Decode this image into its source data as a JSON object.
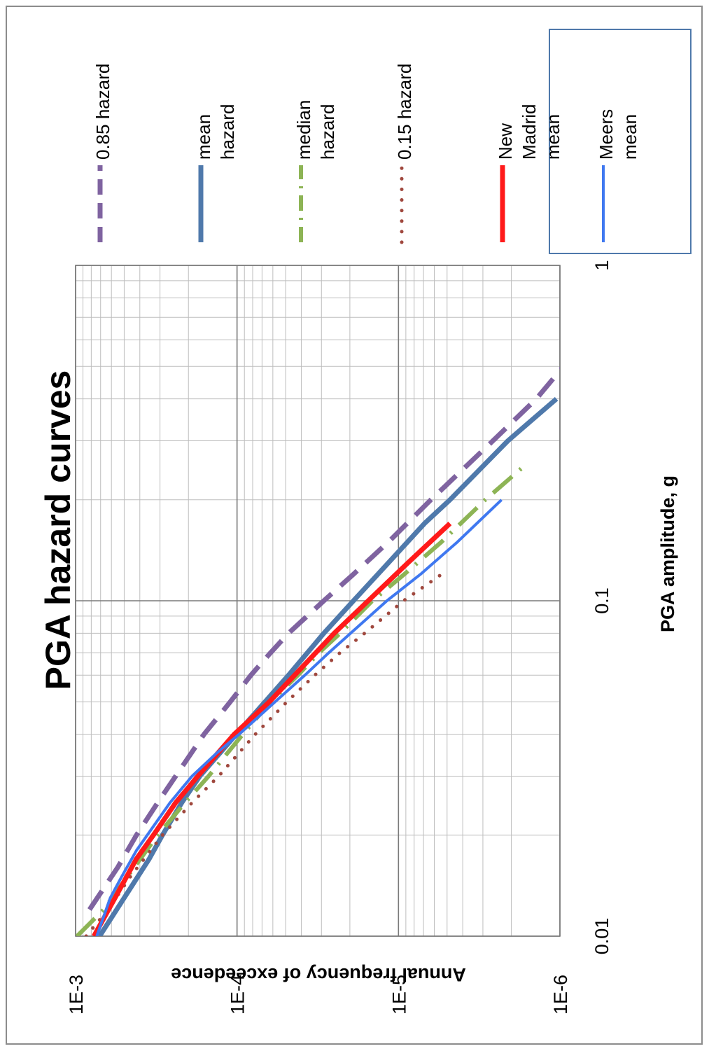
{
  "chart_data": {
    "type": "line",
    "orientation": "rotated-90-clockwise",
    "title": "PGA hazard curves",
    "xlabel": "PGA amplitude, g",
    "ylabel": "Annual frequency of exceedence",
    "xscale": "log",
    "yscale": "log",
    "xlim": [
      0.01,
      1
    ],
    "ylim": [
      1e-06,
      0.001
    ],
    "x_tick_labels": [
      "0.01",
      "0.1",
      "1"
    ],
    "y_tick_labels": [
      "1E-3",
      "1E-4",
      "1E-5",
      "1E-6"
    ],
    "grid": true,
    "legend_position": "right",
    "series": [
      {
        "name": "0.85 hazard",
        "color": "#7f63a0",
        "style": "dashed",
        "width": 7,
        "x": [
          0.012,
          0.016,
          0.02,
          0.025,
          0.03,
          0.04,
          0.05,
          0.06,
          0.07,
          0.08,
          0.1,
          0.12,
          0.15,
          0.2,
          0.3,
          0.4,
          0.5
        ],
        "y": [
          0.00082,
          0.00055,
          0.00042,
          0.00031,
          0.00024,
          0.00016,
          0.00011,
          8.2e-05,
          6.2e-05,
          4.8e-05,
          2.9e-05,
          1.9e-05,
          1.15e-05,
          6.3e-06,
          2.6e-06,
          1.4e-06,
          9.5e-07
        ]
      },
      {
        "name": "mean hazard",
        "color": "#4f79ab",
        "style": "solid",
        "width": 7,
        "x": [
          0.01,
          0.013,
          0.017,
          0.02,
          0.025,
          0.03,
          0.04,
          0.05,
          0.06,
          0.08,
          0.1,
          0.13,
          0.17,
          0.2,
          0.3,
          0.4
        ],
        "y": [
          0.00071,
          0.0005,
          0.00035,
          0.00029,
          0.00022,
          0.00017,
          0.000101,
          6.7e-05,
          4.8e-05,
          2.9e-05,
          1.9e-05,
          1.15e-05,
          6.9e-06,
          4.8e-06,
          2.1e-06,
          1.05e-06
        ]
      },
      {
        "name": "median hazard",
        "color": "#8db455",
        "style": "dashdot",
        "width": 6,
        "x": [
          0.01,
          0.012,
          0.015,
          0.02,
          0.025,
          0.03,
          0.04,
          0.05,
          0.06,
          0.07,
          0.08,
          0.1,
          0.12,
          0.15,
          0.2,
          0.25
        ],
        "y": [
          0.00098,
          0.00067,
          0.00048,
          0.00031,
          0.00021,
          0.00015,
          9.2e-05,
          6.2e-05,
          4.2e-05,
          3.1e-05,
          2.3e-05,
          1.45e-05,
          9.2e-06,
          5.4e-06,
          2.9e-06,
          1.7e-06
        ]
      },
      {
        "name": "0.15 hazard",
        "color": "#a0483e",
        "style": "dotted",
        "width": 5,
        "x": [
          0.01,
          0.012,
          0.015,
          0.02,
          0.025,
          0.03,
          0.04,
          0.05,
          0.06,
          0.07,
          0.08,
          0.1,
          0.12
        ],
        "y": [
          0.00086,
          0.00063,
          0.00046,
          0.00029,
          0.00019,
          0.00013,
          7.7e-05,
          4.9e-05,
          3.3e-05,
          2.3e-05,
          1.62e-05,
          9.3e-06,
          5.4e-06
        ]
      },
      {
        "name": "New Madrid mean",
        "color": "#ff1a1a",
        "style": "solid",
        "width": 7,
        "x": [
          0.01,
          0.013,
          0.017,
          0.02,
          0.025,
          0.03,
          0.04,
          0.05,
          0.06,
          0.08,
          0.1,
          0.13,
          0.17
        ],
        "y": [
          0.00077,
          0.00057,
          0.00042,
          0.00033,
          0.00024,
          0.000175,
          0.000104,
          6.3e-05,
          4.4e-05,
          2.5e-05,
          1.54e-05,
          8.7e-06,
          4.8e-06
        ]
      },
      {
        "name": "Meers mean",
        "color": "#3f78f0",
        "style": "solid",
        "width": 4,
        "x": [
          0.01,
          0.011,
          0.013,
          0.015,
          0.018,
          0.02,
          0.025,
          0.03,
          0.035,
          0.04,
          0.05,
          0.06,
          0.07,
          0.08,
          0.1,
          0.12,
          0.15,
          0.2
        ],
        "y": [
          0.00074,
          0.00069,
          0.00061,
          0.00052,
          0.00042,
          0.00036,
          0.00026,
          0.00019,
          0.000135,
          9.7e-05,
          5.8e-05,
          3.8e-05,
          2.7e-05,
          1.98e-05,
          1.18e-05,
          7.3e-06,
          4.3e-06,
          2.3e-06
        ]
      }
    ]
  }
}
